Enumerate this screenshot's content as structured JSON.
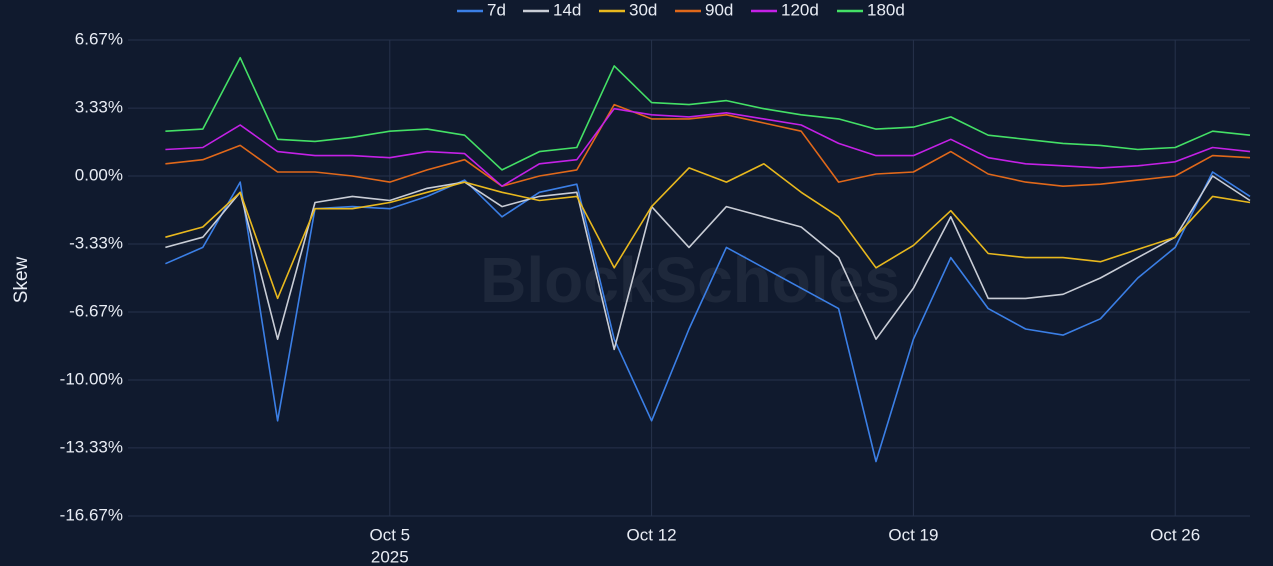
{
  "chart_data": {
    "type": "line",
    "y_label": "Skew",
    "watermark": "BlockScholes",
    "year": "2025",
    "x": [
      "2025-09-29",
      "2025-09-30",
      "2025-10-01",
      "2025-10-02",
      "2025-10-03",
      "2025-10-04",
      "2025-10-05",
      "2025-10-06",
      "2025-10-07",
      "2025-10-08",
      "2025-10-09",
      "2025-10-10",
      "2025-10-11",
      "2025-10-12",
      "2025-10-13",
      "2025-10-14",
      "2025-10-15",
      "2025-10-16",
      "2025-10-17",
      "2025-10-18",
      "2025-10-19",
      "2025-10-20",
      "2025-10-21",
      "2025-10-22",
      "2025-10-23",
      "2025-10-24",
      "2025-10-25",
      "2025-10-26",
      "2025-10-27",
      "2025-10-28"
    ],
    "series": [
      {
        "name": "7d",
        "color": "#3b7fe6",
        "values": [
          -4.3,
          -3.5,
          -0.3,
          -12.0,
          -1.6,
          -1.5,
          -1.6,
          -1.0,
          -0.2,
          -2.0,
          -0.8,
          -0.4,
          -8.0,
          -12.0,
          -7.5,
          -3.5,
          -4.5,
          -5.5,
          -6.5,
          -14.0,
          -8.0,
          -4.0,
          -6.5,
          -7.5,
          -7.8,
          -7.0,
          -5.0,
          -3.5,
          0.2,
          -1.0
        ]
      },
      {
        "name": "14d",
        "color": "#c9cdd6",
        "values": [
          -3.5,
          -3.0,
          -0.8,
          -8.0,
          -1.3,
          -1.0,
          -1.2,
          -0.6,
          -0.3,
          -1.5,
          -1.0,
          -0.8,
          -8.5,
          -1.5,
          -3.5,
          -1.5,
          -2.0,
          -2.5,
          -4.0,
          -8.0,
          -5.5,
          -2.0,
          -6.0,
          -6.0,
          -5.8,
          -5.0,
          -4.0,
          -3.0,
          0.0,
          -1.2
        ]
      },
      {
        "name": "30d",
        "color": "#e8b81e",
        "values": [
          -3.0,
          -2.5,
          -0.8,
          -6.0,
          -1.6,
          -1.6,
          -1.3,
          -0.8,
          -0.3,
          -0.8,
          -1.2,
          -1.0,
          -4.5,
          -1.5,
          0.4,
          -0.3,
          0.6,
          -0.8,
          -2.0,
          -4.5,
          -3.4,
          -1.7,
          -3.8,
          -4.0,
          -4.0,
          -4.2,
          -3.6,
          -3.0,
          -1.0,
          -1.3
        ]
      },
      {
        "name": "90d",
        "color": "#e0681a",
        "values": [
          0.6,
          0.8,
          1.5,
          0.2,
          0.2,
          0.0,
          -0.3,
          0.3,
          0.8,
          -0.5,
          0.0,
          0.3,
          3.5,
          2.8,
          2.8,
          3.0,
          2.6,
          2.2,
          -0.3,
          0.1,
          0.2,
          1.2,
          0.1,
          -0.3,
          -0.5,
          -0.4,
          -0.2,
          0.0,
          1.0,
          0.9
        ]
      },
      {
        "name": "120d",
        "color": "#c421e6",
        "values": [
          1.3,
          1.4,
          2.5,
          1.2,
          1.0,
          1.0,
          0.9,
          1.2,
          1.1,
          -0.5,
          0.6,
          0.8,
          3.3,
          3.0,
          2.9,
          3.1,
          2.8,
          2.5,
          1.6,
          1.0,
          1.0,
          1.8,
          0.9,
          0.6,
          0.5,
          0.4,
          0.5,
          0.7,
          1.4,
          1.2
        ]
      },
      {
        "name": "180d",
        "color": "#44e066",
        "values": [
          2.2,
          2.3,
          5.8,
          1.8,
          1.7,
          1.9,
          2.2,
          2.3,
          2.0,
          0.3,
          1.2,
          1.4,
          5.4,
          3.6,
          3.5,
          3.7,
          3.3,
          3.0,
          2.8,
          2.3,
          2.4,
          2.9,
          2.0,
          1.8,
          1.6,
          1.5,
          1.3,
          1.4,
          2.2,
          2.0
        ]
      }
    ],
    "xlim": [
      "2025-09-28",
      "2025-10-28"
    ],
    "xticks": [
      {
        "value": "2025-10-05",
        "label": "Oct 5"
      },
      {
        "value": "2025-10-12",
        "label": "Oct 12"
      },
      {
        "value": "2025-10-19",
        "label": "Oct 19"
      },
      {
        "value": "2025-10-26",
        "label": "Oct 26"
      }
    ],
    "ylim": [
      -16.67,
      6.67
    ],
    "yticks": [
      {
        "value": 6.67,
        "label": "6.67%"
      },
      {
        "value": 3.33,
        "label": "3.33%"
      },
      {
        "value": 0,
        "label": "0.00%"
      },
      {
        "value": -3.33,
        "label": "-3.33%"
      },
      {
        "value": -6.67,
        "label": "-6.67%"
      },
      {
        "value": -10,
        "label": "-10.00%"
      },
      {
        "value": -13.33,
        "label": "-13.33%"
      },
      {
        "value": -16.67,
        "label": "-16.67%"
      }
    ],
    "grid": true,
    "legend": "top"
  }
}
